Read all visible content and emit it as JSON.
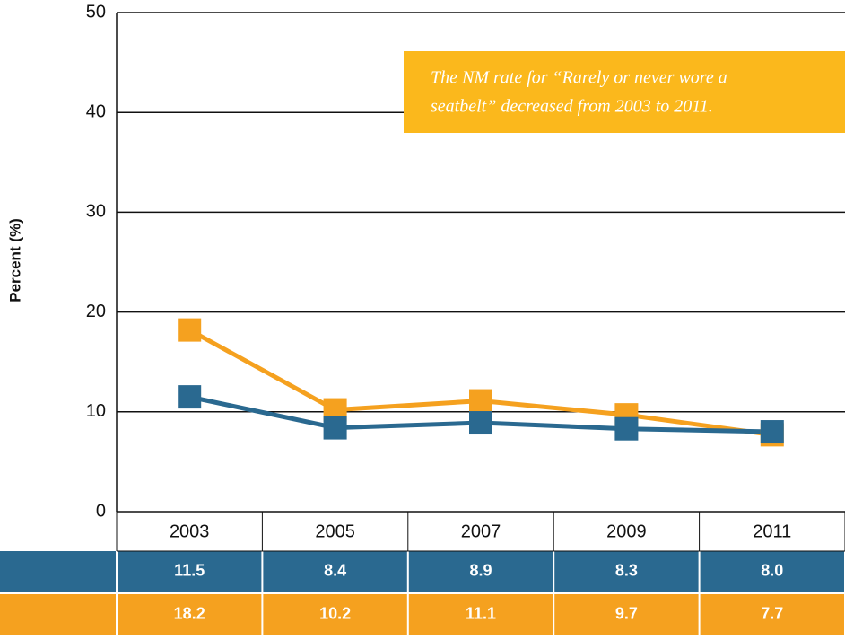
{
  "chart_data": {
    "type": "line",
    "y_label": "Percent (%)",
    "annotation": [
      "The NM rate for “Rarely or never wore a",
      "seatbelt” decreased from 2003 to 2011."
    ],
    "categories": [
      "2003",
      "2005",
      "2007",
      "2009",
      "2011"
    ],
    "series": [
      {
        "color": "#2a6990",
        "values": [
          11.5,
          8.4,
          8.9,
          8.3,
          8.0
        ],
        "value_labels": [
          "11.5",
          "8.4",
          "8.9",
          "8.3",
          "8.0"
        ]
      },
      {
        "color": "#f5a11f",
        "values": [
          18.2,
          10.2,
          11.1,
          9.7,
          7.7
        ],
        "value_labels": [
          "18.2",
          "10.2",
          "11.1",
          "9.7",
          "7.7"
        ]
      }
    ],
    "ylim": [
      0,
      50
    ],
    "yticks": [
      0,
      10,
      20,
      30,
      40,
      50
    ],
    "grid": true
  }
}
